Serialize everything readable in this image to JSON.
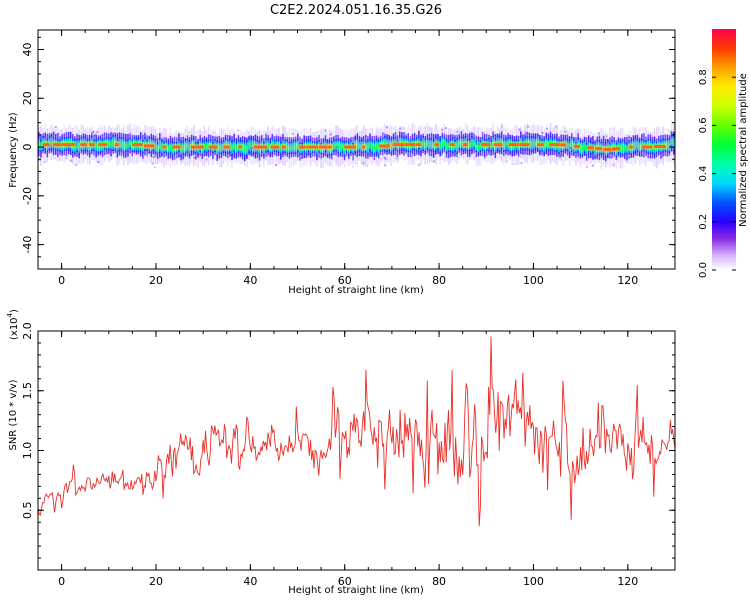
{
  "title": "C2E2.2024.051.16.35.G26",
  "colors": {
    "snr_line": "#e8302a",
    "axis": "#000000"
  },
  "chart_data": [
    {
      "type": "heatmap",
      "xlabel": "Height of straight line (km)",
      "ylabel": "Frequency (Hz)",
      "xlim": [
        -5,
        130
      ],
      "ylim": [
        -50,
        48
      ],
      "xticks": [
        "0",
        "20",
        "40",
        "60",
        "80",
        "100",
        "120"
      ],
      "yticks": [
        "-40",
        "-20",
        "0",
        "20",
        "40"
      ],
      "band": {
        "x": [
          -4,
          0,
          5,
          10,
          15,
          20,
          25,
          30,
          35,
          40,
          45,
          50,
          55,
          60,
          65,
          70,
          75,
          80,
          85,
          90,
          95,
          100,
          105,
          110,
          115,
          120,
          125,
          130
        ],
        "center_hz": [
          1,
          1,
          1,
          1,
          1,
          0,
          0,
          0,
          0,
          0,
          0,
          0,
          0,
          0,
          0,
          1,
          1,
          1,
          1,
          1,
          1,
          1,
          1,
          0,
          -1,
          0,
          0,
          2
        ],
        "core_halfwidth_hz": 3,
        "halo_halfwidth_hz": 6
      },
      "colorbar": {
        "label": "Normalized spectral amplitude",
        "range": [
          0,
          1
        ],
        "ticks": [
          "0.0",
          "0.2",
          "0.4",
          "0.6",
          "0.8"
        ],
        "placement": "right"
      }
    },
    {
      "type": "line",
      "xlabel": "Height of straight line (km)",
      "ylabel": "SNR (10 * v/v)",
      "scale_label": "(x10",
      "scale_exp": "4",
      "scale_close": ")",
      "xlim": [
        -5,
        130
      ],
      "ylim": [
        0,
        2.0
      ],
      "xticks": [
        "0",
        "20",
        "40",
        "60",
        "80",
        "100",
        "120"
      ],
      "yticks": [
        "0.5",
        "1.0",
        "1.5",
        "2.0"
      ],
      "series": [
        {
          "x": [
            -5,
            0,
            5,
            10,
            15,
            20,
            25,
            30,
            35,
            40,
            45,
            50,
            55,
            60,
            65,
            70,
            75,
            80,
            85,
            90,
            95,
            100,
            105,
            110,
            115,
            120,
            125,
            130
          ],
          "mean": [
            0.55,
            0.68,
            0.72,
            0.75,
            0.72,
            0.8,
            0.95,
            1.0,
            1.0,
            1.05,
            1.1,
            1.05,
            1.05,
            1.1,
            1.15,
            1.05,
            1.1,
            1.05,
            1.0,
            1.1,
            1.15,
            1.1,
            1.1,
            1.05,
            1.0,
            1.05,
            1.1,
            1.05
          ],
          "spread": [
            0.08,
            0.1,
            0.12,
            0.12,
            0.12,
            0.15,
            0.25,
            0.3,
            0.25,
            0.22,
            0.25,
            0.25,
            0.28,
            0.32,
            0.38,
            0.4,
            0.45,
            0.55,
            0.55,
            0.55,
            0.5,
            0.45,
            0.4,
            0.38,
            0.35,
            0.4,
            0.42,
            0.4
          ]
        }
      ]
    }
  ]
}
